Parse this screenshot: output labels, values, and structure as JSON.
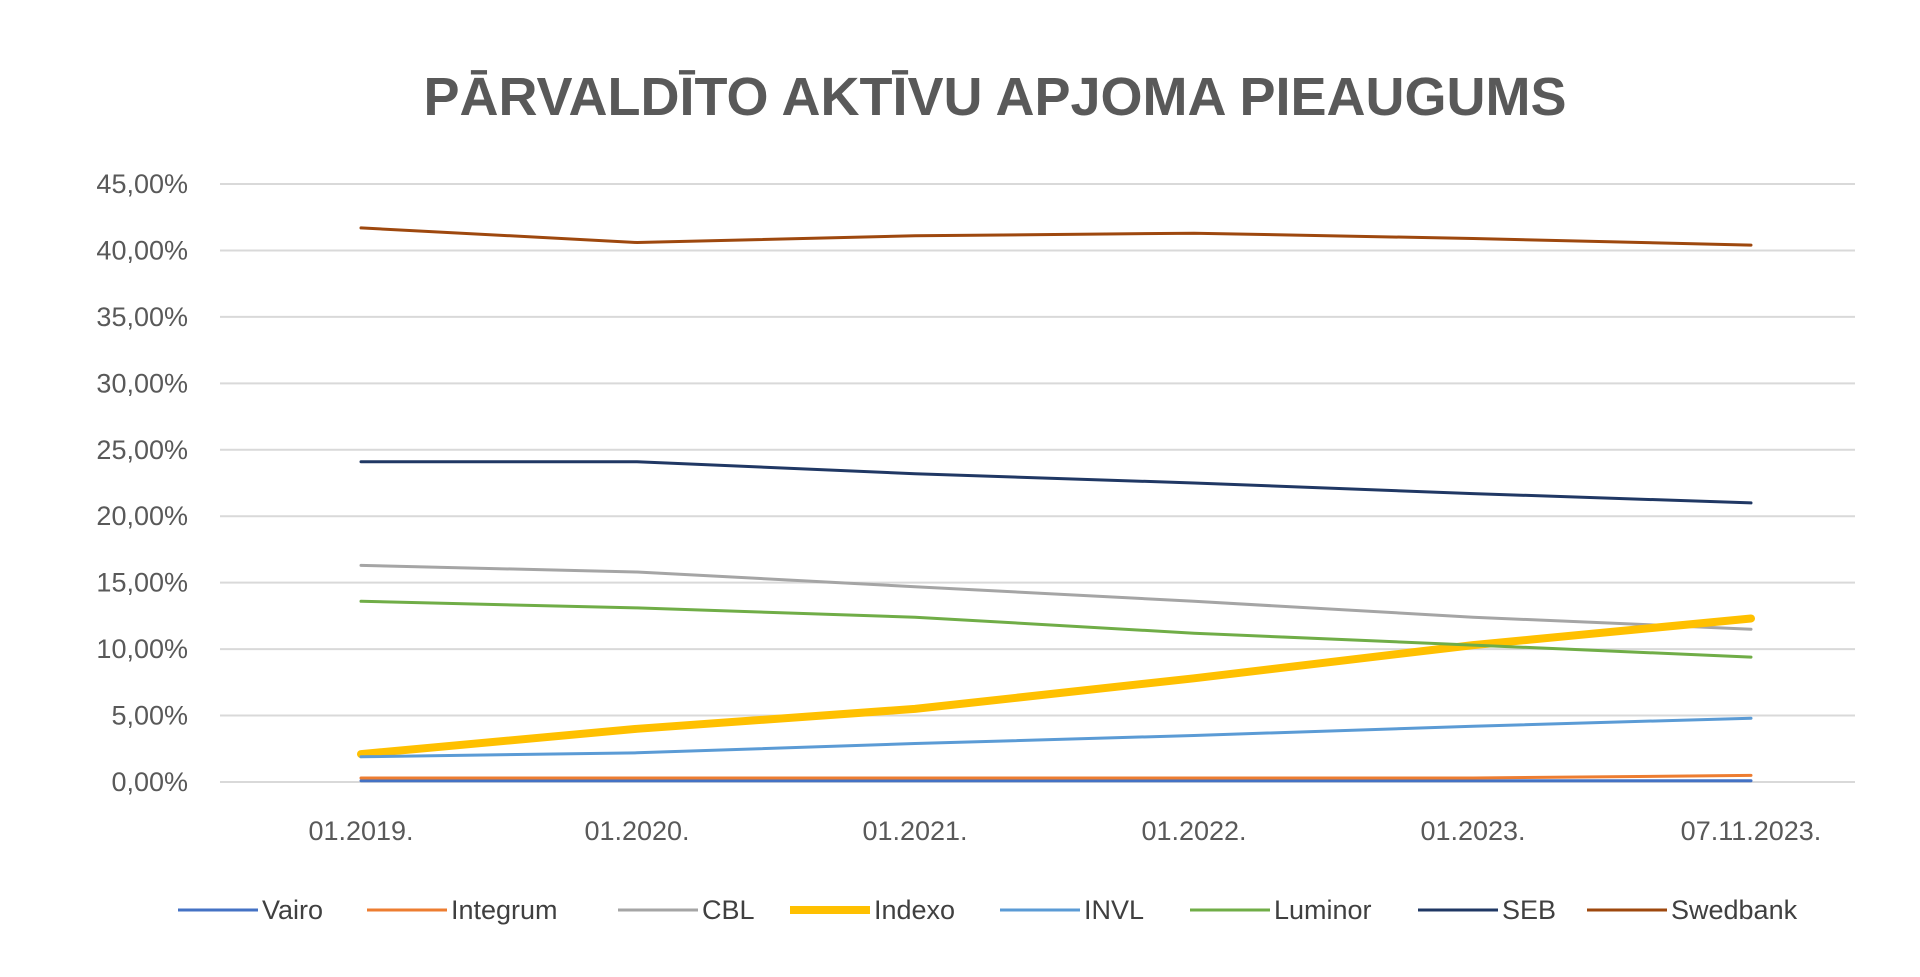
{
  "chart_data": {
    "type": "line",
    "title": "PĀRVALDĪTO AKTĪVU APJOMA PIEAUGUMS",
    "xlabel": "",
    "ylabel": "",
    "categories": [
      "01.2019.",
      "01.2020.",
      "01.2021.",
      "01.2022.",
      "01.2023.",
      "07.11.2023."
    ],
    "ylim": [
      0,
      45
    ],
    "yticks": [
      "0,00%",
      "5,00%",
      "10,00%",
      "15,00%",
      "20,00%",
      "25,00%",
      "30,00%",
      "35,00%",
      "40,00%",
      "45,00%"
    ],
    "grid": true,
    "legend_position": "bottom",
    "series": [
      {
        "name": "Vairo",
        "color": "#4472C4",
        "width": 3,
        "values": [
          0.1,
          0.1,
          0.1,
          0.1,
          0.1,
          0.1
        ]
      },
      {
        "name": "Integrum",
        "color": "#ED7D31",
        "width": 3,
        "values": [
          0.3,
          0.3,
          0.3,
          0.3,
          0.3,
          0.5
        ]
      },
      {
        "name": "CBL",
        "color": "#A5A5A5",
        "width": 3,
        "values": [
          16.3,
          15.8,
          14.7,
          13.6,
          12.4,
          11.5
        ]
      },
      {
        "name": "Indexo",
        "color": "#FFC000",
        "width": 8,
        "values": [
          2.1,
          4.0,
          5.5,
          7.8,
          10.3,
          12.3
        ]
      },
      {
        "name": "INVL",
        "color": "#5B9BD5",
        "width": 3,
        "values": [
          1.9,
          2.2,
          2.9,
          3.5,
          4.2,
          4.8
        ]
      },
      {
        "name": "Luminor",
        "color": "#70AD47",
        "width": 3,
        "values": [
          13.6,
          13.1,
          12.4,
          11.2,
          10.3,
          9.4
        ]
      },
      {
        "name": "SEB",
        "color": "#203864",
        "width": 3,
        "values": [
          24.1,
          24.1,
          23.2,
          22.5,
          21.7,
          21.0
        ]
      },
      {
        "name": "Swedbank",
        "color": "#9E480E",
        "width": 3,
        "values": [
          41.7,
          40.6,
          41.1,
          41.3,
          40.9,
          40.4
        ]
      }
    ]
  }
}
